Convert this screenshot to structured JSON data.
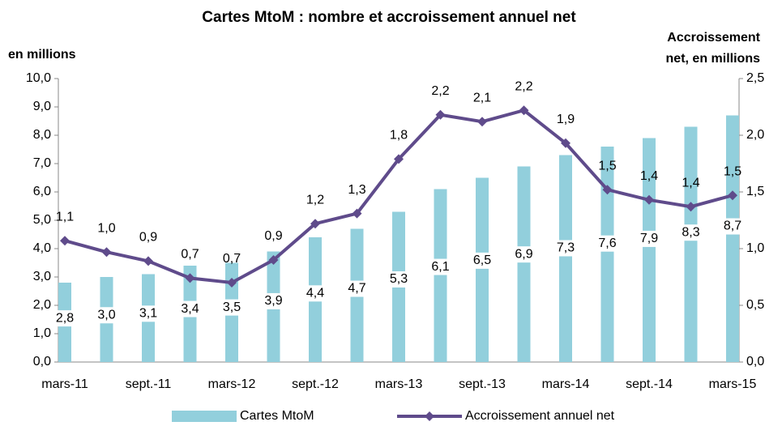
{
  "chart_data": {
    "type": "bar-line",
    "title": "Cartes MtoM : nombre et accroissement annuel net",
    "y_label": "en millions",
    "y2_label_lines": [
      "Accroissement",
      "net, en millions"
    ],
    "categories": [
      "mars-11",
      null,
      "sept.-11",
      null,
      "mars-12",
      null,
      "sept.-12",
      null,
      "mars-13",
      null,
      "sept.-13",
      null,
      "mars-14",
      null,
      "sept.-14",
      null,
      "mars-15"
    ],
    "series": [
      {
        "name": "Cartes MtoM",
        "type": "bar",
        "color": "#92cfdc",
        "values": [
          2.8,
          3.0,
          3.1,
          3.4,
          3.5,
          3.9,
          4.4,
          4.7,
          5.3,
          6.1,
          6.5,
          6.9,
          7.3,
          7.6,
          7.9,
          8.3,
          8.7
        ],
        "value_labels": [
          "2,8",
          "3,0",
          "3,1",
          "3,4",
          "3,5",
          "3,9",
          "4,4",
          "4,7",
          "5,3",
          "6,1",
          "6,5",
          "6,9",
          "7,3",
          "7,6",
          "7,9",
          "8,3",
          "8,7"
        ]
      },
      {
        "name": "Accroissement annuel net",
        "type": "line",
        "axis": "y2",
        "color": "#5f4b8b",
        "values": [
          1.07,
          0.97,
          0.89,
          0.74,
          0.7,
          0.9,
          1.22,
          1.31,
          1.79,
          2.18,
          2.12,
          2.22,
          1.93,
          1.52,
          1.43,
          1.37,
          1.47
        ],
        "value_labels": [
          "1,1",
          "1,0",
          "0,9",
          "0,7",
          "0,7",
          "0,9",
          "1,2",
          "1,3",
          "1,8",
          "2,2",
          "2,1",
          "2,2",
          "1,9",
          "1,5",
          "1,4",
          "1,4",
          "1,5"
        ]
      }
    ],
    "ylim": [
      0,
      10
    ],
    "yticks": [
      {
        "value": 0,
        "label": "0,0"
      },
      {
        "value": 1,
        "label": "1,0"
      },
      {
        "value": 2,
        "label": "2,0"
      },
      {
        "value": 3,
        "label": "3,0"
      },
      {
        "value": 4,
        "label": "4,0"
      },
      {
        "value": 5,
        "label": "5,0"
      },
      {
        "value": 6,
        "label": "6,0"
      },
      {
        "value": 7,
        "label": "7,0"
      },
      {
        "value": 8,
        "label": "8,0"
      },
      {
        "value": 9,
        "label": "9,0"
      },
      {
        "value": 10,
        "label": "10,0"
      }
    ],
    "y2lim": [
      0,
      2.5
    ],
    "y2ticks": [
      {
        "value": 0,
        "label": "0,0"
      },
      {
        "value": 0.5,
        "label": "0,5"
      },
      {
        "value": 1,
        "label": "1,0"
      },
      {
        "value": 1.5,
        "label": "1,5"
      },
      {
        "value": 2,
        "label": "2,0"
      },
      {
        "value": 2.5,
        "label": "2,5"
      }
    ],
    "legend": "bottom"
  }
}
